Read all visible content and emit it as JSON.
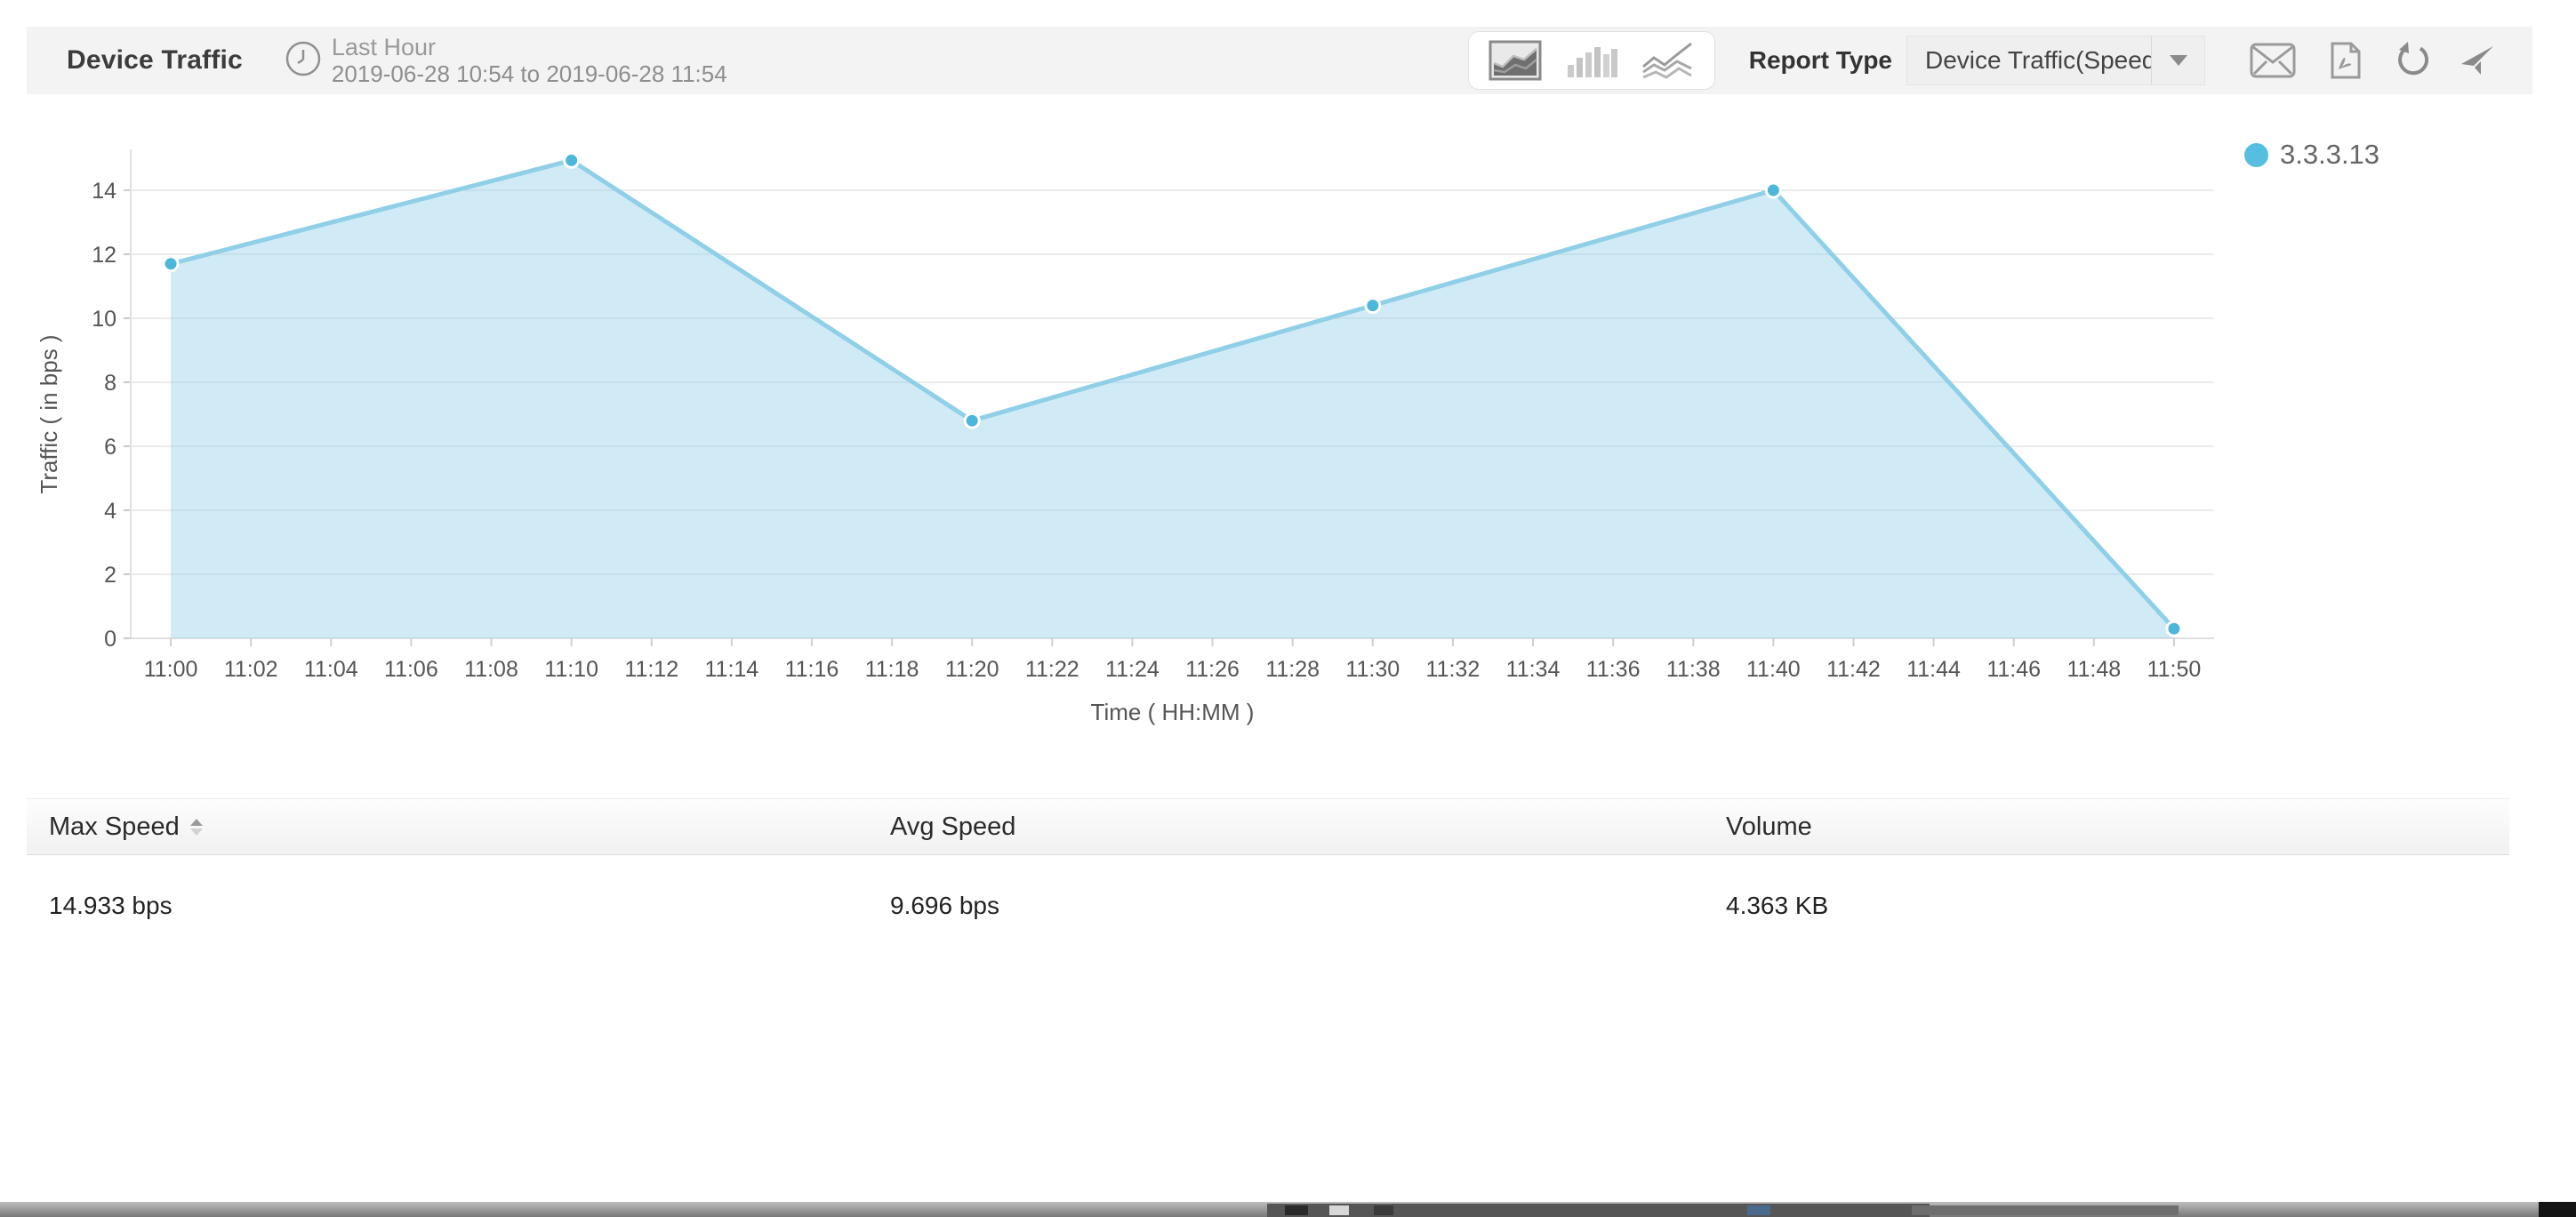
{
  "header": {
    "title": "Device Traffic",
    "period_label": "Last Hour",
    "period_range": "2019-06-28 10:54 to 2019-06-28 11:54",
    "report_type_label": "Report Type",
    "report_type_value": "Device Traffic(Speed)",
    "chart_type_options": [
      "area-chart",
      "bar-chart",
      "line-chart"
    ],
    "selected_chart_type": "area-chart",
    "action_icons": [
      "email",
      "export-pdf",
      "refresh",
      "pin"
    ],
    "background_color": "#f3f3f4"
  },
  "legend": {
    "items": [
      {
        "label": "3.3.3.13",
        "color": "#56bfe1"
      }
    ]
  },
  "chart_data": {
    "type": "area",
    "title": "",
    "xlabel": "Time ( HH:MM )",
    "ylabel": "Traffic ( in bps )",
    "x_ticks": [
      "11:00",
      "11:02",
      "11:04",
      "11:06",
      "11:08",
      "11:10",
      "11:12",
      "11:14",
      "11:16",
      "11:18",
      "11:20",
      "11:22",
      "11:24",
      "11:26",
      "11:28",
      "11:30",
      "11:32",
      "11:34",
      "11:36",
      "11:38",
      "11:40",
      "11:42",
      "11:44",
      "11:46",
      "11:48",
      "11:50"
    ],
    "y_ticks": [
      0,
      2,
      4,
      6,
      8,
      10,
      12,
      14
    ],
    "ylim": [
      0,
      15.5
    ],
    "grid": true,
    "legend_position": "top-right",
    "series": [
      {
        "name": "3.3.3.13",
        "x": [
          "11:00",
          "11:10",
          "11:20",
          "11:30",
          "11:40",
          "11:50"
        ],
        "values": [
          11.7,
          14.933,
          6.8,
          10.4,
          14.0,
          0.3
        ]
      }
    ],
    "line_color": "#8fd0e8",
    "fill_color": "rgba(143,208,232,0.42)",
    "point_color": "#4db6db"
  },
  "table": {
    "columns": [
      "Max Speed",
      "Avg Speed",
      "Volume"
    ],
    "sorted_column": "Max Speed",
    "sort_direction": "ascending",
    "rows": [
      {
        "max_speed": "14.933 bps",
        "avg_speed": "9.696 bps",
        "volume": "4.363 KB"
      }
    ]
  }
}
